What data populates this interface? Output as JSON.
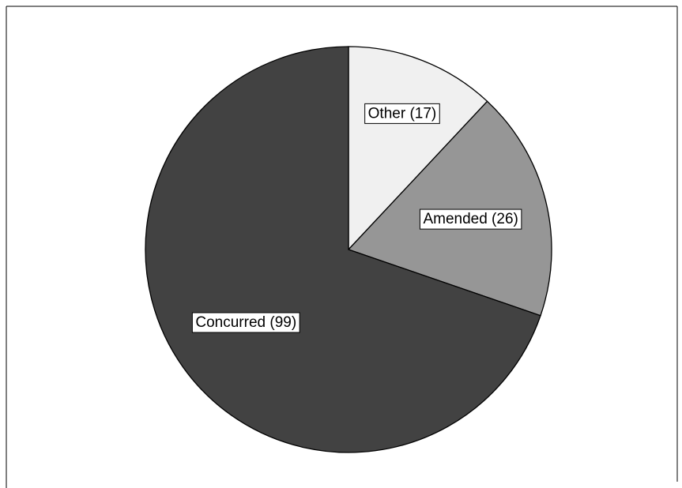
{
  "chart_data": {
    "type": "pie",
    "title": "",
    "start_angle_deg": 0,
    "direction": "clockwise",
    "slices": [
      {
        "label": "Other (17)",
        "category": "Other",
        "value": 17,
        "color": "#f0f0f0"
      },
      {
        "label": "Amended (26)",
        "category": "Amended",
        "value": 26,
        "color": "#969696"
      },
      {
        "label": "Concurred (99)",
        "category": "Concurred",
        "value": 99,
        "color": "#424242"
      }
    ],
    "legend": "none",
    "slice_border_color": "#000000"
  },
  "colors": {
    "background": "#ffffff",
    "frame": "#000000"
  }
}
